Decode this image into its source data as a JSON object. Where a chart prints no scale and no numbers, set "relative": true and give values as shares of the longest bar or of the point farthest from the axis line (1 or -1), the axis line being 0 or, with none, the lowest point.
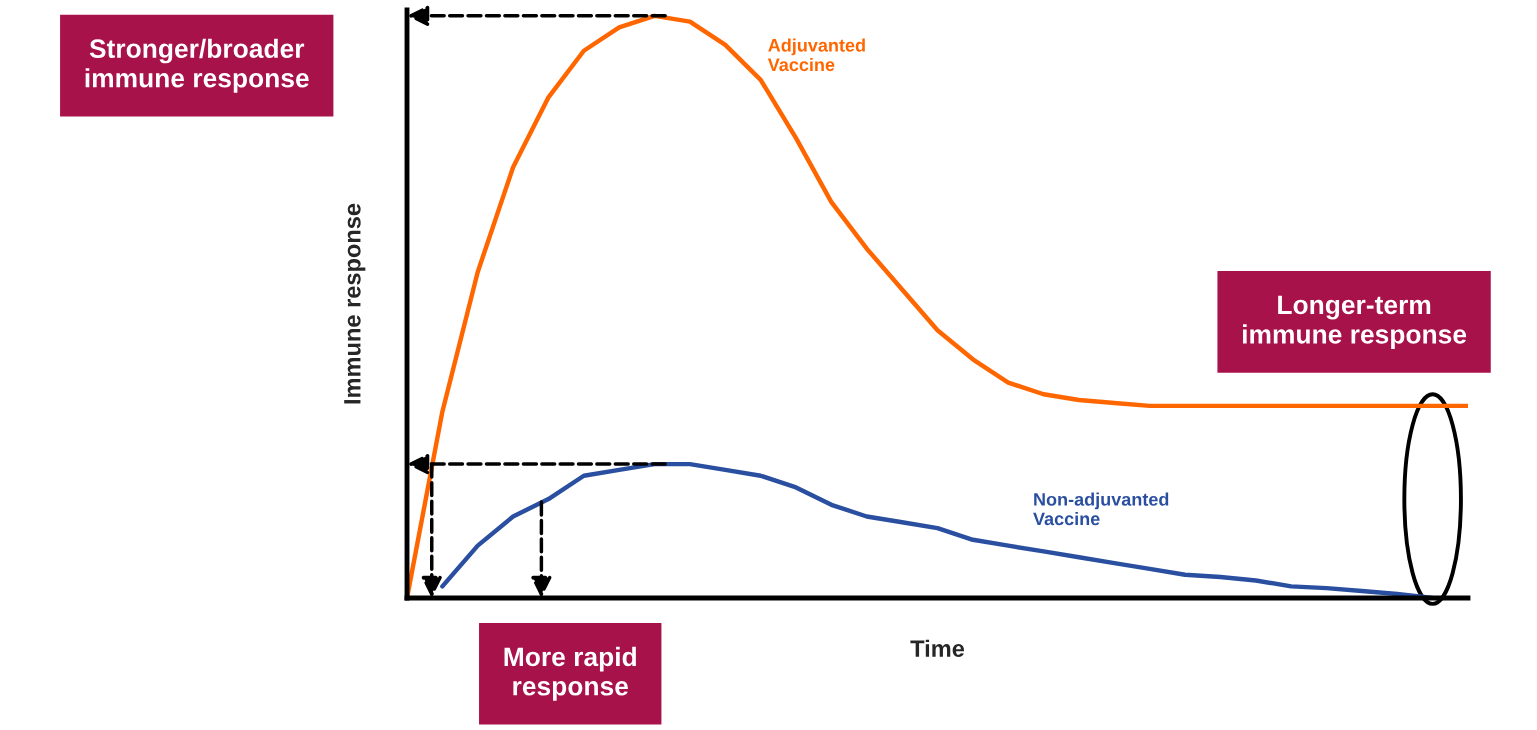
{
  "chart_data": {
    "type": "line",
    "relative": true,
    "xlabel": "Time",
    "ylabel": "Immune response",
    "categories": [
      null,
      null,
      null,
      null,
      null,
      null,
      null,
      null,
      null,
      null,
      null,
      null,
      null,
      null,
      null,
      null,
      null,
      null,
      null,
      null,
      null,
      null,
      null,
      null,
      null,
      null,
      null,
      null,
      null,
      null,
      null
    ],
    "series": [
      {
        "name": "Adjuvanted\nVaccine",
        "color": "#ff6600",
        "values": [
          0,
          0.32,
          0.56,
          0.74,
          0.86,
          0.94,
          0.98,
          1.0,
          0.99,
          0.95,
          0.89,
          0.79,
          0.68,
          0.6,
          0.53,
          0.46,
          0.41,
          0.37,
          0.35,
          0.34,
          0.335,
          0.33,
          0.33,
          0.33,
          0.33,
          0.33,
          0.33,
          0.33,
          0.33,
          0.33,
          0.33
        ]
      },
      {
        "name": "Non-adjuvanted\nVaccine",
        "color": "#2a4fa0",
        "values": [
          null,
          0.02,
          0.09,
          0.14,
          0.17,
          0.21,
          0.22,
          0.23,
          0.23,
          0.22,
          0.21,
          0.19,
          0.16,
          0.14,
          0.13,
          0.12,
          0.1,
          0.09,
          0.08,
          0.07,
          0.06,
          0.05,
          0.04,
          0.036,
          0.03,
          0.02,
          0.017,
          0.012,
          0.007,
          0.0,
          null
        ]
      }
    ],
    "annotations": [
      "Stronger/broader\nimmune response",
      "Longer-term\nimmune response",
      "More rapid\nresponse"
    ],
    "marker": "none",
    "line_style": "solid"
  }
}
